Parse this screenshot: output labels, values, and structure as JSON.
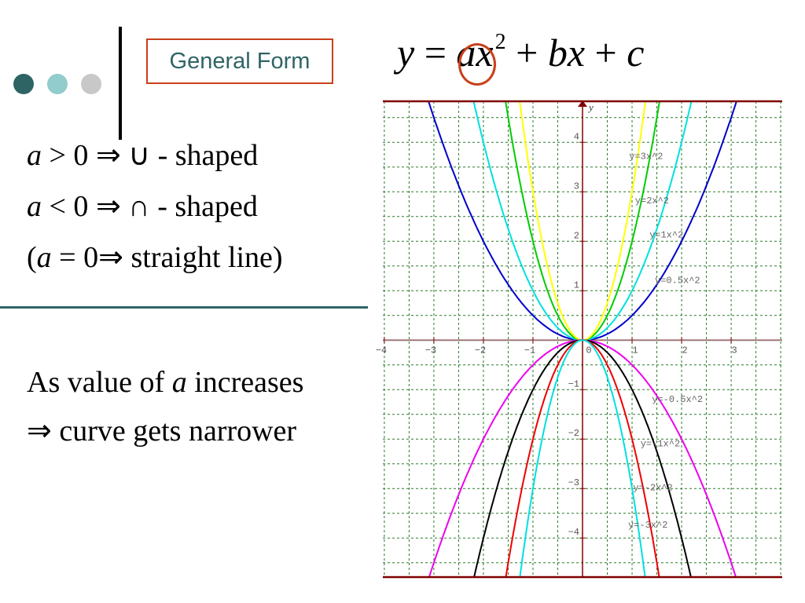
{
  "slide": {
    "bullet_dots": [
      "#2f6465",
      "#92cccc",
      "#c8c8c8"
    ],
    "title": "General Form",
    "equation": {
      "y": "y",
      "eq": " = ",
      "a": "a",
      "x": "x",
      "exp": "2",
      "rest_plus1": " + ",
      "b": "b",
      "x2": "x",
      "rest_plus2": " + ",
      "c": "c"
    },
    "conditions": [
      {
        "var": "a",
        "rel": " > 0  ",
        "arrow": "⇒",
        "shape": " ∪ - shaped"
      },
      {
        "var": "a",
        "rel": " < 0  ",
        "arrow": "⇒",
        "shape": " ∩ - shaped"
      }
    ],
    "zero_case": {
      "open": "(",
      "var": "a",
      "rel": " = 0",
      "arrow": "⇒",
      "text": "  straight line)"
    },
    "note_line1_pre": "As value of ",
    "note_line1_var": "a",
    "note_line1_post": " increases",
    "note_line2_arrow": "⇒",
    "note_line2_text": "  curve gets narrower",
    "accent_color": "#c8401a",
    "theme_color": "#2f6465"
  },
  "chart_data": {
    "type": "line",
    "xlim": [
      -4.03,
      4.03
    ],
    "ylim": [
      -4.79,
      4.83
    ],
    "grid": true,
    "grid_step": 0.5,
    "y_axis_label": "y",
    "x_ticks": [
      -4,
      -3,
      -2,
      -1,
      0,
      1,
      2,
      3
    ],
    "y_ticks": [
      -4,
      -3,
      -2,
      -1,
      1,
      2,
      3,
      4
    ],
    "origin_label": "0",
    "series": [
      {
        "a": 0.5,
        "color": "#0000cc"
      },
      {
        "a": 1,
        "color": "#00e0e0"
      },
      {
        "a": 2,
        "color": "#00cc00"
      },
      {
        "a": 3,
        "color": "#ffff00"
      },
      {
        "a": -0.5,
        "color": "#ee00ee"
      },
      {
        "a": -1,
        "color": "#000000"
      },
      {
        "a": -2,
        "color": "#ee0000"
      },
      {
        "a": -3,
        "color": "#00e0e0"
      }
    ],
    "annotations": [
      {
        "text": "y=3x^2",
        "x": 0.94,
        "y": 3.73
      },
      {
        "text": "y=2x^2",
        "x": 1.06,
        "y": 2.83
      },
      {
        "text": "y=1x^2",
        "x": 1.35,
        "y": 2.14
      },
      {
        "text": "y=0.5x^2",
        "x": 1.46,
        "y": 1.22
      },
      {
        "text": "y=-0.5x^2",
        "x": 1.4,
        "y": -1.19
      },
      {
        "text": "y=-1x^2",
        "x": 1.17,
        "y": -2.08
      },
      {
        "text": "y=-2x^2",
        "x": 1.02,
        "y": -2.97
      },
      {
        "text": "y=-3x^2",
        "x": 0.92,
        "y": -3.73
      }
    ]
  }
}
